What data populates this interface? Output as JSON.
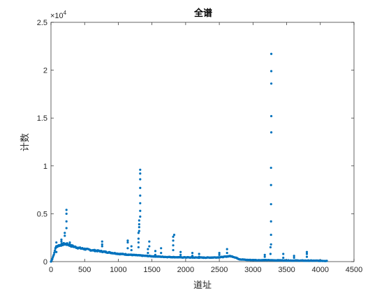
{
  "chart_data": {
    "type": "scatter",
    "title": "全谱",
    "xlabel": "道址",
    "ylabel": "计数",
    "xlim": [
      0,
      4500
    ],
    "ylim": [
      0,
      25000
    ],
    "x_ticks": [
      0,
      500,
      1000,
      1500,
      2000,
      2500,
      3000,
      3500,
      4000,
      4500
    ],
    "y_ticks": [
      0,
      0.5,
      1,
      1.5,
      2,
      2.5
    ],
    "y_tick_labels": [
      "0",
      "0.5",
      "1",
      "1.5",
      "2",
      "2.5"
    ],
    "y_exponent_label": "×10",
    "y_exponent_power": "4",
    "grid": false,
    "marker_color": "#0072BD",
    "baseline_points": [
      [
        0,
        0
      ],
      [
        20,
        300
      ],
      [
        50,
        900
      ],
      [
        70,
        1500
      ],
      [
        100,
        1650
      ],
      [
        150,
        1750
      ],
      [
        200,
        1850
      ],
      [
        250,
        1800
      ],
      [
        300,
        1650
      ],
      [
        350,
        1550
      ],
      [
        400,
        1450
      ],
      [
        450,
        1380
      ],
      [
        500,
        1320
      ],
      [
        600,
        1200
      ],
      [
        700,
        1120
      ],
      [
        800,
        1020
      ],
      [
        900,
        920
      ],
      [
        1000,
        820
      ],
      [
        1100,
        760
      ],
      [
        1200,
        700
      ],
      [
        1300,
        650
      ],
      [
        1400,
        600
      ],
      [
        1500,
        560
      ],
      [
        1600,
        520
      ],
      [
        1700,
        490
      ],
      [
        1800,
        470
      ],
      [
        1900,
        450
      ],
      [
        2000,
        440
      ],
      [
        2100,
        430
      ],
      [
        2200,
        420
      ],
      [
        2300,
        415
      ],
      [
        2400,
        430
      ],
      [
        2500,
        450
      ],
      [
        2600,
        520
      ],
      [
        2650,
        580
      ],
      [
        2700,
        520
      ],
      [
        2750,
        400
      ],
      [
        2800,
        250
      ],
      [
        2900,
        180
      ],
      [
        3000,
        160
      ],
      [
        3100,
        150
      ],
      [
        3200,
        150
      ],
      [
        3300,
        140
      ],
      [
        3400,
        130
      ],
      [
        3500,
        120
      ],
      [
        3600,
        110
      ],
      [
        3700,
        105
      ],
      [
        3800,
        100
      ],
      [
        3900,
        95
      ],
      [
        4000,
        90
      ],
      [
        4096,
        80
      ]
    ],
    "peaks": [
      {
        "x": 80,
        "values": [
          1000,
          1500,
          2000
        ]
      },
      {
        "x": 155,
        "values": [
          2100,
          2300
        ]
      },
      {
        "x": 205,
        "values": [
          2700,
          3000
        ]
      },
      {
        "x": 230,
        "values": [
          3500,
          4200,
          5000,
          5400
        ]
      },
      {
        "x": 280,
        "values": [
          1800,
          2000
        ]
      },
      {
        "x": 760,
        "values": [
          1600,
          1800,
          2100
        ]
      },
      {
        "x": 1140,
        "values": [
          1400,
          2000,
          2200
        ]
      },
      {
        "x": 1195,
        "values": [
          1200,
          1600
        ]
      },
      {
        "x": 1300,
        "values": [
          1500,
          2000,
          2400,
          3000
        ]
      },
      {
        "x": 1310,
        "values": [
          3200,
          3600,
          3900,
          4300
        ]
      },
      {
        "x": 1325,
        "values": [
          4700,
          5300,
          6100,
          6900,
          7700,
          8600,
          9200,
          9600
        ]
      },
      {
        "x": 1440,
        "values": [
          900,
          1300
        ]
      },
      {
        "x": 1460,
        "values": [
          1600,
          2100
        ]
      },
      {
        "x": 1550,
        "values": [
          700,
          1100
        ]
      },
      {
        "x": 1635,
        "values": [
          900,
          1400
        ]
      },
      {
        "x": 1815,
        "values": [
          1200,
          1700,
          2200,
          2600
        ]
      },
      {
        "x": 1830,
        "values": [
          2800
        ]
      },
      {
        "x": 1925,
        "values": [
          700,
          1000
        ]
      },
      {
        "x": 2100,
        "values": [
          600,
          900
        ]
      },
      {
        "x": 2200,
        "values": [
          500,
          800
        ]
      },
      {
        "x": 2500,
        "values": [
          700,
          900
        ]
      },
      {
        "x": 2615,
        "values": [
          900,
          1300
        ]
      },
      {
        "x": 3175,
        "values": [
          500,
          700
        ]
      },
      {
        "x": 3260,
        "values": [
          800,
          1500
        ]
      },
      {
        "x": 3268,
        "values": [
          1800,
          2800,
          4200,
          6000,
          8000,
          9800
        ]
      },
      {
        "x": 3272,
        "values": [
          13500,
          15200,
          18600,
          19900,
          21700
        ]
      },
      {
        "x": 3450,
        "values": [
          400,
          800
        ]
      },
      {
        "x": 3610,
        "values": [
          400,
          600
        ]
      },
      {
        "x": 3800,
        "values": [
          500,
          800,
          1000
        ]
      }
    ]
  }
}
